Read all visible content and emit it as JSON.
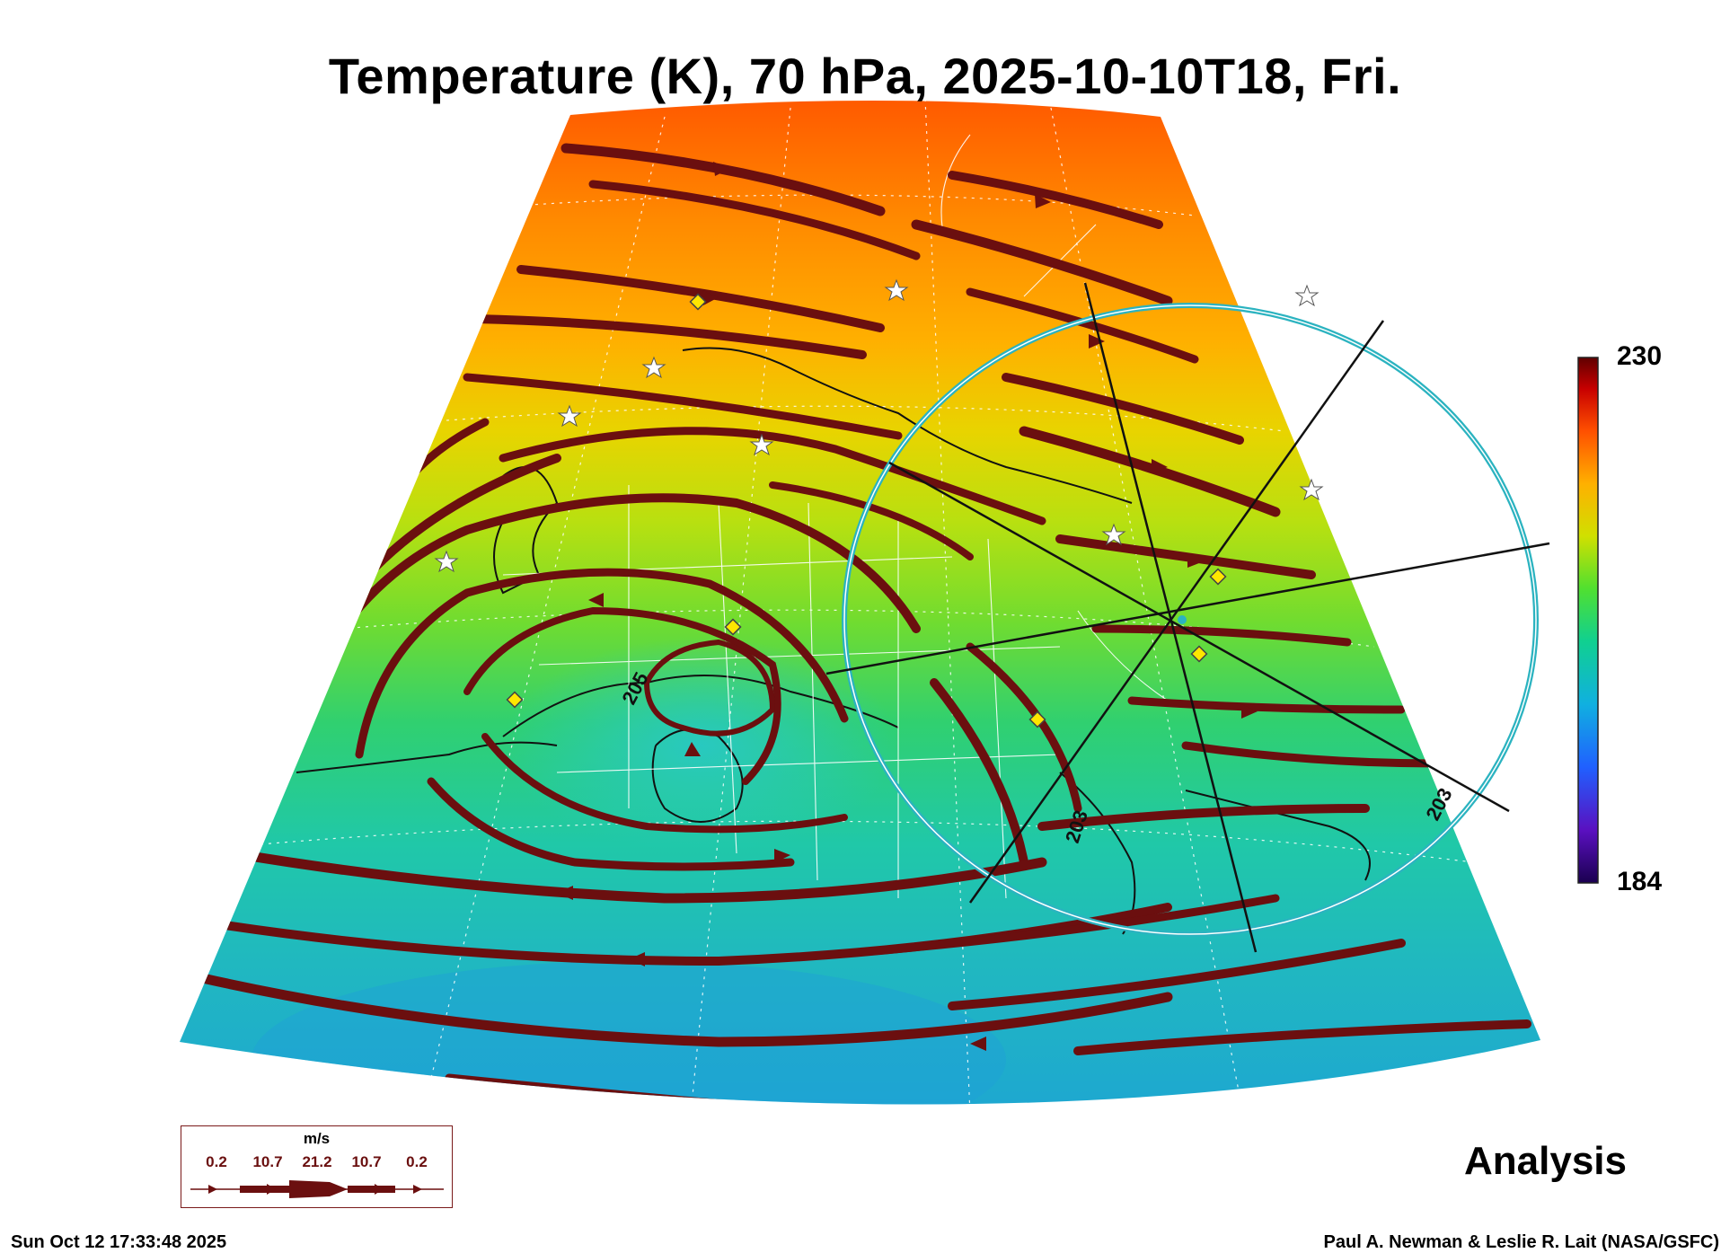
{
  "title": "Temperature (K), 70 hPa, 2025-10-10T18, Fri.",
  "colorbar": {
    "max_label": "230",
    "min_label": "184",
    "max": 230,
    "min": 184
  },
  "contour_labels": [
    "205",
    "203",
    "203"
  ],
  "product_label": "Analysis",
  "legend": {
    "unit": "m/s",
    "speeds": [
      "0.2",
      "10.7",
      "21.2",
      "10.7",
      "0.2"
    ]
  },
  "timestamp": "Sun Oct 12 17:33:48 2025",
  "credit": "Paul A. Newman & Leslie R. Lait (NASA/GSFC)",
  "colors": {
    "streamline": "#6b0f0f",
    "range_ring": "#2bb3c0",
    "marker_diamond": "#ffe600",
    "warm": "#ff6a00",
    "cool": "#22c7b0"
  }
}
